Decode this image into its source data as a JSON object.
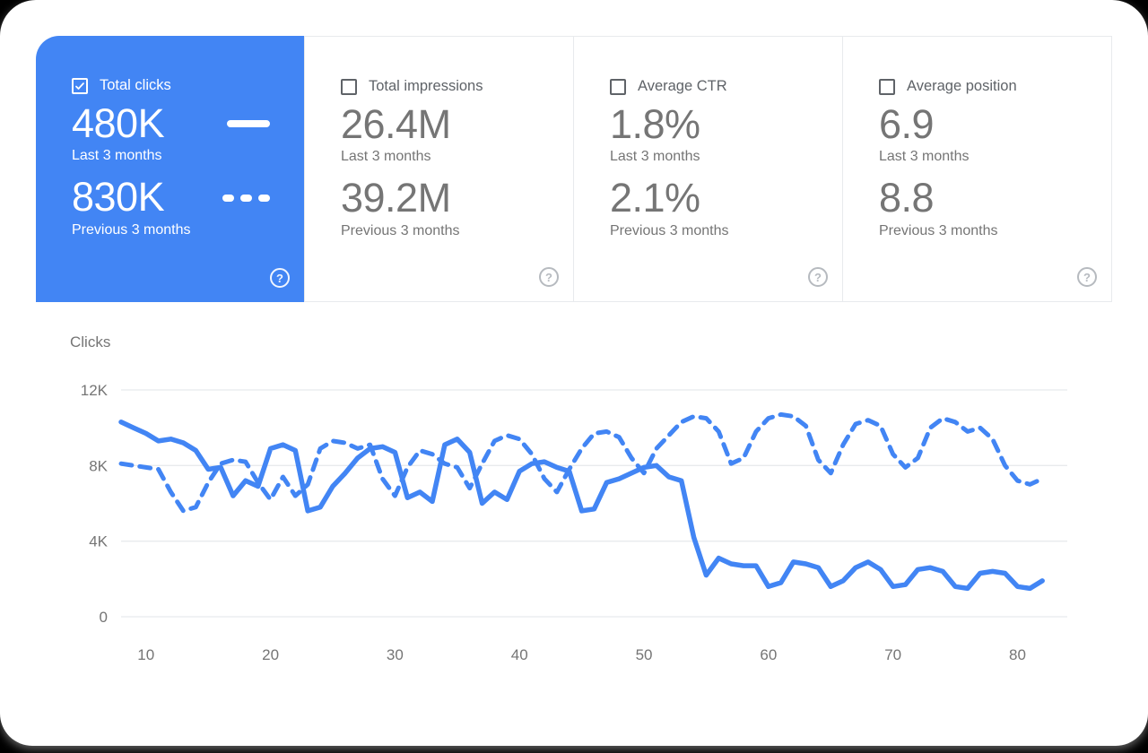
{
  "cards": [
    {
      "id": "total-clicks",
      "label": "Total clicks",
      "checked": true,
      "selected": true,
      "primary_value": "480K",
      "primary_caption": "Last 3 months",
      "secondary_value": "830K",
      "secondary_caption": "Previous 3 months"
    },
    {
      "id": "total-impressions",
      "label": "Total impressions",
      "checked": false,
      "selected": false,
      "primary_value": "26.4M",
      "primary_caption": "Last 3 months",
      "secondary_value": "39.2M",
      "secondary_caption": "Previous 3 months"
    },
    {
      "id": "average-ctr",
      "label": "Average CTR",
      "checked": false,
      "selected": false,
      "primary_value": "1.8%",
      "primary_caption": "Last 3 months",
      "secondary_value": "2.1%",
      "secondary_caption": "Previous 3 months"
    },
    {
      "id": "average-position",
      "label": "Average position",
      "checked": false,
      "selected": false,
      "primary_value": "6.9",
      "primary_caption": "Last 3 months",
      "secondary_value": "8.8",
      "secondary_caption": "Previous 3 months"
    }
  ],
  "chart": {
    "axis_label": "Clicks"
  },
  "chart_data": {
    "type": "line",
    "title": "Clicks",
    "ylabel": "Clicks",
    "y_unit": "thousands",
    "xlim": [
      8,
      84
    ],
    "ylim": [
      0,
      12
    ],
    "grid": true,
    "xticks": [
      10,
      20,
      30,
      40,
      50,
      60,
      70,
      80
    ],
    "yticks": [
      {
        "value": 0,
        "label": "0"
      },
      {
        "value": 4,
        "label": "4K"
      },
      {
        "value": 8,
        "label": "8K"
      },
      {
        "value": 12,
        "label": "12K"
      }
    ],
    "series": [
      {
        "name": "Last 3 months",
        "style": "solid",
        "x": [
          8,
          9,
          10,
          11,
          12,
          13,
          14,
          15,
          16,
          17,
          18,
          19,
          20,
          21,
          22,
          23,
          24,
          25,
          26,
          27,
          28,
          29,
          30,
          31,
          32,
          33,
          34,
          35,
          36,
          37,
          38,
          39,
          40,
          41,
          42,
          43,
          44,
          45,
          46,
          47,
          48,
          49,
          50,
          51,
          52,
          53,
          54,
          55,
          56,
          57,
          58,
          59,
          60,
          61,
          62,
          63,
          64,
          65,
          66,
          67,
          68,
          69,
          70,
          71,
          72,
          73,
          74,
          75,
          76,
          77,
          78,
          79,
          80,
          81,
          82
        ],
        "y": [
          10.3,
          10.0,
          9.7,
          9.3,
          9.4,
          9.2,
          8.8,
          7.8,
          7.9,
          6.4,
          7.2,
          6.9,
          8.9,
          9.1,
          8.8,
          5.6,
          5.8,
          6.9,
          7.6,
          8.4,
          8.9,
          9.0,
          8.7,
          6.3,
          6.6,
          6.1,
          9.1,
          9.4,
          8.7,
          6.0,
          6.6,
          6.2,
          7.7,
          8.1,
          8.2,
          7.9,
          7.7,
          5.6,
          5.7,
          7.1,
          7.3,
          7.6,
          7.9,
          8.0,
          7.4,
          7.2,
          4.2,
          2.2,
          3.1,
          2.8,
          2.7,
          2.7,
          1.6,
          1.8,
          2.9,
          2.8,
          2.6,
          1.6,
          1.9,
          2.6,
          2.9,
          2.5,
          1.6,
          1.7,
          2.5,
          2.6,
          2.4,
          1.6,
          1.5,
          2.3,
          2.4,
          2.3,
          1.6,
          1.5,
          1.9
        ]
      },
      {
        "name": "Previous 3 months",
        "style": "dashed",
        "x": [
          8,
          9,
          10,
          11,
          12,
          13,
          14,
          15,
          16,
          17,
          18,
          19,
          20,
          21,
          22,
          23,
          24,
          25,
          26,
          27,
          28,
          29,
          30,
          31,
          32,
          33,
          34,
          35,
          36,
          37,
          38,
          39,
          40,
          41,
          42,
          43,
          44,
          45,
          46,
          47,
          48,
          49,
          50,
          51,
          52,
          53,
          54,
          55,
          56,
          57,
          58,
          59,
          60,
          61,
          62,
          63,
          64,
          65,
          66,
          67,
          68,
          69,
          70,
          71,
          72,
          73,
          74,
          75,
          76,
          77,
          78,
          79,
          80,
          81,
          82
        ],
        "y": [
          8.1,
          8.0,
          7.9,
          7.8,
          6.6,
          5.6,
          5.8,
          7.1,
          8.1,
          8.3,
          8.2,
          7.1,
          6.2,
          7.4,
          6.4,
          7.0,
          8.9,
          9.3,
          9.2,
          8.9,
          9.1,
          7.3,
          6.4,
          7.9,
          8.8,
          8.6,
          8.1,
          7.9,
          6.8,
          8.1,
          9.3,
          9.6,
          9.4,
          8.6,
          7.3,
          6.6,
          7.8,
          8.9,
          9.7,
          9.8,
          9.5,
          8.4,
          7.6,
          8.9,
          9.6,
          10.3,
          10.6,
          10.5,
          9.8,
          8.1,
          8.4,
          9.8,
          10.5,
          10.7,
          10.6,
          10.1,
          8.3,
          7.6,
          9.1,
          10.2,
          10.4,
          10.1,
          8.6,
          7.9,
          8.4,
          10.0,
          10.5,
          10.3,
          9.8,
          10.0,
          9.4,
          8.0,
          7.2,
          7.0,
          7.3
        ]
      }
    ],
    "legend_position": "in-card"
  },
  "icons": {
    "help_glyph": "?"
  },
  "colors": {
    "accent": "#4285f4",
    "selected_card_bg": "#4285f4",
    "selected_card_text": "#ffffff",
    "value_text": "#757575",
    "label_text": "#5f6368",
    "caption_text": "#757575",
    "gridline": "#e8eaed",
    "axis_text": "#757575",
    "line": "#4285f4",
    "divider": "#e8eaed",
    "help_icon": "#b6babf"
  }
}
